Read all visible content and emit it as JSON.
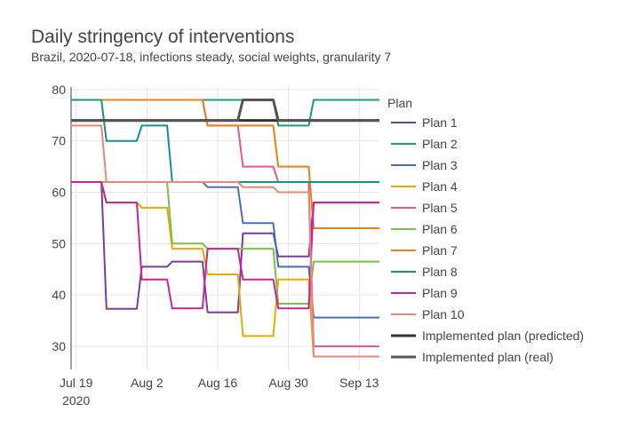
{
  "title": "Daily stringency of interventions",
  "subtitle": "Brazil, 2020-07-18, infections steady, social weights, granularity 7",
  "chart_data": {
    "type": "line",
    "x_type": "date",
    "xlim": [
      "2020-07-18",
      "2020-09-17"
    ],
    "ylim": [
      25.5,
      80.5
    ],
    "x_ticks": [
      {
        "date": "2020-07-19",
        "label": "Jul 19",
        "sublabel": "2020"
      },
      {
        "date": "2020-08-02",
        "label": "Aug 2"
      },
      {
        "date": "2020-08-16",
        "label": "Aug 16"
      },
      {
        "date": "2020-08-30",
        "label": "Aug 30"
      },
      {
        "date": "2020-09-13",
        "label": "Sep 13"
      }
    ],
    "y_ticks": [
      30,
      40,
      50,
      60,
      70,
      80
    ],
    "grid": true,
    "legend_title": "Plan",
    "legend_position": "right",
    "series": [
      {
        "name": "Plan 1",
        "color": "#7a3e9d",
        "width": 2,
        "points": [
          [
            "2020-07-18",
            62
          ],
          [
            "2020-07-24",
            62
          ],
          [
            "2020-07-25",
            37.3
          ],
          [
            "2020-07-31",
            37.3
          ],
          [
            "2020-08-01",
            45.5
          ],
          [
            "2020-08-06",
            45.5
          ],
          [
            "2020-08-07",
            46.5
          ],
          [
            "2020-08-13",
            46.5
          ],
          [
            "2020-08-14",
            36.6
          ],
          [
            "2020-08-20",
            36.6
          ],
          [
            "2020-08-21",
            52
          ],
          [
            "2020-08-27",
            52
          ],
          [
            "2020-08-28",
            47.5
          ],
          [
            "2020-09-03",
            47.5
          ],
          [
            "2020-09-04",
            58
          ],
          [
            "2020-09-17",
            58
          ]
        ]
      },
      {
        "name": "Plan 2",
        "color": "#1a9e77",
        "width": 2,
        "points": [
          [
            "2020-07-18",
            78
          ],
          [
            "2020-08-27",
            78
          ],
          [
            "2020-08-28",
            73
          ],
          [
            "2020-09-03",
            73
          ],
          [
            "2020-09-04",
            78
          ],
          [
            "2020-09-17",
            78
          ]
        ]
      },
      {
        "name": "Plan 3",
        "color": "#4a6fb5",
        "width": 2,
        "points": [
          [
            "2020-07-18",
            62
          ],
          [
            "2020-08-13",
            62
          ],
          [
            "2020-08-14",
            61
          ],
          [
            "2020-08-20",
            61
          ],
          [
            "2020-08-21",
            54
          ],
          [
            "2020-08-27",
            54
          ],
          [
            "2020-08-28",
            45.5
          ],
          [
            "2020-09-03",
            45.5
          ],
          [
            "2020-09-04",
            35.6
          ],
          [
            "2020-09-17",
            35.6
          ]
        ]
      },
      {
        "name": "Plan 4",
        "color": "#e6ab02",
        "width": 2,
        "points": [
          [
            "2020-07-18",
            62
          ],
          [
            "2020-07-24",
            62
          ],
          [
            "2020-07-25",
            58
          ],
          [
            "2020-07-31",
            58
          ],
          [
            "2020-08-01",
            57
          ],
          [
            "2020-08-06",
            57
          ],
          [
            "2020-08-07",
            49
          ],
          [
            "2020-08-13",
            49
          ],
          [
            "2020-08-14",
            44
          ],
          [
            "2020-08-20",
            44
          ],
          [
            "2020-08-21",
            32
          ],
          [
            "2020-08-27",
            32
          ],
          [
            "2020-08-28",
            43
          ],
          [
            "2020-09-03",
            43
          ],
          [
            "2020-09-04",
            28
          ],
          [
            "2020-09-17",
            28
          ]
        ]
      },
      {
        "name": "Plan 5",
        "color": "#e7559a",
        "width": 2,
        "points": [
          [
            "2020-07-18",
            78
          ],
          [
            "2020-08-13",
            78
          ],
          [
            "2020-08-14",
            73
          ],
          [
            "2020-08-20",
            73
          ],
          [
            "2020-08-21",
            65
          ],
          [
            "2020-08-27",
            65
          ],
          [
            "2020-08-28",
            62
          ],
          [
            "2020-09-03",
            62
          ],
          [
            "2020-09-04",
            30
          ],
          [
            "2020-09-17",
            30
          ]
        ]
      },
      {
        "name": "Plan 6",
        "color": "#7cbf4a",
        "width": 2,
        "points": [
          [
            "2020-07-18",
            62
          ],
          [
            "2020-08-06",
            62
          ],
          [
            "2020-08-07",
            50
          ],
          [
            "2020-08-13",
            50
          ],
          [
            "2020-08-14",
            49
          ],
          [
            "2020-08-27",
            49
          ],
          [
            "2020-08-28",
            38.3
          ],
          [
            "2020-09-03",
            38.3
          ],
          [
            "2020-09-04",
            46.5
          ],
          [
            "2020-09-17",
            46.5
          ]
        ]
      },
      {
        "name": "Plan 7",
        "color": "#e3831b",
        "width": 2,
        "points": [
          [
            "2020-07-18",
            78
          ],
          [
            "2020-08-13",
            78
          ],
          [
            "2020-08-14",
            73
          ],
          [
            "2020-08-27",
            73
          ],
          [
            "2020-08-28",
            65
          ],
          [
            "2020-09-03",
            65
          ],
          [
            "2020-09-04",
            53
          ],
          [
            "2020-09-17",
            53
          ]
        ]
      },
      {
        "name": "Plan 8",
        "color": "#1a8f8f",
        "width": 2,
        "points": [
          [
            "2020-07-18",
            78
          ],
          [
            "2020-07-24",
            78
          ],
          [
            "2020-07-25",
            70
          ],
          [
            "2020-07-31",
            70
          ],
          [
            "2020-08-01",
            73
          ],
          [
            "2020-08-06",
            73
          ],
          [
            "2020-08-07",
            62
          ],
          [
            "2020-09-17",
            62
          ]
        ]
      },
      {
        "name": "Plan 9",
        "color": "#c7259a",
        "width": 2,
        "points": [
          [
            "2020-07-18",
            62
          ],
          [
            "2020-07-24",
            62
          ],
          [
            "2020-07-25",
            58
          ],
          [
            "2020-07-31",
            58
          ],
          [
            "2020-08-01",
            43
          ],
          [
            "2020-08-06",
            43
          ],
          [
            "2020-08-07",
            37.4
          ],
          [
            "2020-08-13",
            37.4
          ],
          [
            "2020-08-14",
            49
          ],
          [
            "2020-08-20",
            49
          ],
          [
            "2020-08-21",
            43
          ],
          [
            "2020-08-27",
            43
          ],
          [
            "2020-08-28",
            37.4
          ],
          [
            "2020-09-03",
            37.4
          ],
          [
            "2020-09-04",
            58
          ],
          [
            "2020-09-17",
            58
          ]
        ]
      },
      {
        "name": "Plan 10",
        "color": "#e8877a",
        "width": 2,
        "points": [
          [
            "2020-07-18",
            73
          ],
          [
            "2020-07-24",
            73
          ],
          [
            "2020-07-25",
            62
          ],
          [
            "2020-08-20",
            62
          ],
          [
            "2020-08-21",
            61
          ],
          [
            "2020-08-27",
            61
          ],
          [
            "2020-08-28",
            60
          ],
          [
            "2020-09-03",
            60
          ],
          [
            "2020-09-04",
            28
          ],
          [
            "2020-09-17",
            28
          ]
        ]
      },
      {
        "name": "Implemented plan (predicted)",
        "color": "#333333",
        "width": 3,
        "points": [
          [
            "2020-07-18",
            74
          ],
          [
            "2020-09-17",
            74
          ]
        ]
      },
      {
        "name": "Implemented plan (real)",
        "color": "#555555",
        "width": 3,
        "points": [
          [
            "2020-07-18",
            74
          ],
          [
            "2020-08-20",
            74
          ],
          [
            "2020-08-21",
            78
          ],
          [
            "2020-08-27",
            78
          ],
          [
            "2020-08-28",
            74
          ],
          [
            "2020-09-17",
            74
          ]
        ]
      }
    ]
  }
}
